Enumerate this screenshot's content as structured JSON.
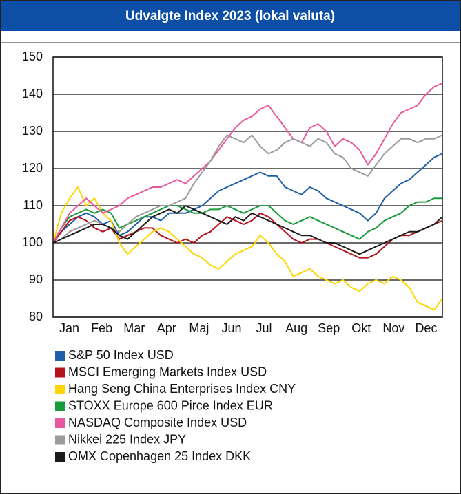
{
  "chart_data": {
    "type": "line",
    "title": "Udvalgte Index 2023 (lokal valuta)",
    "categories": [
      "Jan",
      null,
      null,
      null,
      "Feb",
      null,
      null,
      null,
      "Mar",
      null,
      null,
      null,
      "Apr",
      null,
      null,
      null,
      "Maj",
      null,
      null,
      null,
      "Jun",
      null,
      null,
      null,
      "Jul",
      null,
      null,
      null,
      "Aug",
      null,
      null,
      null,
      "Sep",
      null,
      null,
      null,
      "Okt",
      null,
      null,
      null,
      "Nov",
      null,
      null,
      null,
      "Dec",
      null,
      null,
      null
    ],
    "ylim": [
      80,
      150
    ],
    "yticks": [
      80,
      90,
      100,
      110,
      120,
      130,
      140,
      150
    ],
    "grid": true,
    "series": [
      {
        "name": "S&P 50 Index USD",
        "color": "#1f5fa8",
        "values": [
          100,
          103,
          105,
          107,
          108,
          107,
          105,
          106,
          102,
          103,
          105,
          107,
          107,
          106,
          108,
          108,
          108,
          109,
          110,
          112,
          114,
          115,
          116,
          117,
          118,
          119,
          118,
          118,
          115,
          114,
          113,
          115,
          114,
          112,
          111,
          110,
          109,
          108,
          106,
          108,
          112,
          114,
          116,
          117,
          119,
          121,
          123,
          124
        ]
      },
      {
        "name": "MSCI Emerging Markets Index USD",
        "color": "#b5121b",
        "values": [
          100,
          103,
          106,
          107,
          106,
          104,
          103,
          104,
          101,
          102,
          103,
          104,
          104,
          102,
          101,
          100,
          101,
          100,
          102,
          103,
          105,
          107,
          106,
          105,
          106,
          108,
          107,
          105,
          103,
          101,
          100,
          101,
          101,
          100,
          99,
          98,
          97,
          96,
          96,
          97,
          99,
          101,
          102,
          102,
          103,
          104,
          105,
          106
        ]
      },
      {
        "name": "Hang Seng China Enterprises Index CNY",
        "color": "#ffd500",
        "values": [
          100,
          108,
          112,
          115,
          110,
          112,
          108,
          106,
          100,
          97,
          99,
          101,
          103,
          104,
          103,
          101,
          99,
          97,
          96,
          94,
          93,
          95,
          97,
          98,
          99,
          102,
          100,
          97,
          95,
          91,
          92,
          93,
          91,
          90,
          89,
          90,
          88,
          87,
          89,
          90,
          89,
          91,
          90,
          88,
          84,
          83,
          82,
          85
        ]
      },
      {
        "name": "STOXX Europe 600 Pirce Index EUR",
        "color": "#1a9b3a",
        "values": [
          100,
          104,
          107,
          108,
          109,
          108,
          109,
          108,
          104,
          105,
          106,
          107,
          108,
          109,
          110,
          110,
          109,
          108,
          108,
          109,
          109,
          110,
          109,
          108,
          109,
          110,
          110,
          108,
          106,
          105,
          106,
          107,
          106,
          105,
          104,
          103,
          102,
          101,
          103,
          104,
          106,
          107,
          108,
          110,
          111,
          111,
          112,
          112
        ]
      },
      {
        "name": "NASDAQ Composite Index USD",
        "color": "#e8589f",
        "values": [
          100,
          104,
          108,
          110,
          112,
          110,
          108,
          109,
          110,
          112,
          113,
          114,
          115,
          115,
          116,
          117,
          116,
          118,
          120,
          122,
          125,
          128,
          131,
          133,
          134,
          136,
          137,
          134,
          131,
          128,
          127,
          131,
          132,
          130,
          126,
          128,
          127,
          125,
          121,
          124,
          128,
          132,
          135,
          136,
          137,
          140,
          142,
          143
        ]
      },
      {
        "name": "Nikkei 225 Index JPY",
        "color": "#9b9b9b",
        "values": [
          100,
          101,
          103,
          104,
          105,
          106,
          105,
          104,
          103,
          105,
          107,
          108,
          109,
          110,
          110,
          111,
          112,
          116,
          119,
          122,
          126,
          129,
          128,
          127,
          129,
          126,
          124,
          125,
          127,
          128,
          127,
          126,
          128,
          127,
          124,
          123,
          120,
          119,
          118,
          121,
          124,
          126,
          128,
          128,
          127,
          128,
          128,
          129
        ]
      },
      {
        "name": "OMX Copenhagen 25 Index DKK",
        "color": "#1a1a1a",
        "values": [
          100,
          101,
          102,
          103,
          104,
          105,
          105,
          104,
          102,
          101,
          103,
          105,
          107,
          108,
          109,
          108,
          110,
          109,
          108,
          107,
          106,
          105,
          107,
          106,
          108,
          107,
          106,
          105,
          104,
          103,
          102,
          102,
          101,
          100,
          100,
          99,
          98,
          97,
          98,
          99,
          100,
          101,
          102,
          103,
          103,
          104,
          105,
          107
        ]
      }
    ]
  }
}
